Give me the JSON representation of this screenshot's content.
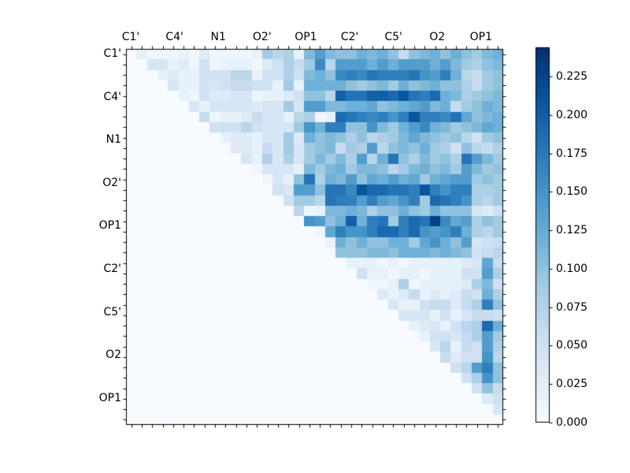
{
  "figure": {
    "background": "#ffffff",
    "kind": "matplotlib-figure"
  },
  "chart_data": {
    "type": "heatmap",
    "title": "",
    "xlabel": "",
    "ylabel": "",
    "n_rows": 36,
    "n_cols": 36,
    "x_tick_labels": [
      "C1'",
      "C4'",
      "N1",
      "O2'",
      "OP1",
      "C2'",
      "C5'",
      "O2",
      "OP1"
    ],
    "y_tick_labels": [
      "C1'",
      "C4'",
      "N1",
      "O2'",
      "OP1",
      "C2'",
      "C5'",
      "O2",
      "OP1"
    ],
    "label_every_n_cells": 4,
    "vmin": 0.0,
    "vmax": 0.244,
    "colormap": "Blues",
    "colormap_stops": [
      {
        "t": 0.0,
        "c": "#f7fbff"
      },
      {
        "t": 0.125,
        "c": "#deebf7"
      },
      {
        "t": 0.25,
        "c": "#c6dbef"
      },
      {
        "t": 0.375,
        "c": "#9ecae1"
      },
      {
        "t": 0.5,
        "c": "#6baed6"
      },
      {
        "t": 0.625,
        "c": "#4292c6"
      },
      {
        "t": 0.75,
        "c": "#2171b5"
      },
      {
        "t": 0.875,
        "c": "#08519c"
      },
      {
        "t": 1.0,
        "c": "#08306b"
      }
    ],
    "colorbar": {
      "position": "right",
      "ticks": [
        {
          "label": "0.000",
          "value": 0.0
        },
        {
          "label": "0.025",
          "value": 0.025
        },
        {
          "label": "0.050",
          "value": 0.05
        },
        {
          "label": "0.075",
          "value": 0.075
        },
        {
          "label": "0.100",
          "value": 0.1
        },
        {
          "label": "0.125",
          "value": 0.125
        },
        {
          "label": "0.150",
          "value": 0.15
        },
        {
          "label": "0.175",
          "value": 0.175
        },
        {
          "label": "0.200",
          "value": 0.2
        },
        {
          "label": "0.225",
          "value": 0.225
        }
      ]
    },
    "matrix": [
      [
        0,
        0.02,
        0.01,
        0.01,
        0.01,
        0.02,
        0.01,
        0.03,
        0.01,
        0.01,
        0.01,
        0.01,
        0.02,
        0.09,
        0.07,
        0.08,
        0.02,
        0.11,
        0.14,
        0.11,
        0.1,
        0.1,
        0.12,
        0.11,
        0.12,
        0.1,
        0.06,
        0.1,
        0.11,
        0.12,
        0.1,
        0.12,
        0.1,
        0.09,
        0.11,
        0.12
      ],
      [
        0,
        0,
        0.04,
        0.04,
        0.02,
        0.03,
        0.01,
        0.05,
        0.01,
        0.02,
        0.02,
        0.02,
        0.01,
        0.03,
        0.05,
        0.08,
        0.06,
        0.09,
        0.16,
        0.07,
        0.14,
        0.14,
        0.14,
        0.12,
        0.14,
        0.12,
        0.14,
        0.14,
        0.14,
        0.12,
        0.14,
        0.11,
        0.09,
        0.08,
        0.1,
        0.11
      ],
      [
        0,
        0,
        0,
        0.02,
        0.03,
        0.02,
        0.02,
        0.05,
        0.05,
        0.05,
        0.07,
        0.07,
        0.02,
        0.05,
        0.05,
        0.08,
        0.05,
        0.11,
        0.12,
        0.1,
        0.16,
        0.17,
        0.16,
        0.18,
        0.17,
        0.17,
        0.17,
        0.18,
        0.15,
        0.14,
        0.17,
        0.12,
        0.07,
        0.06,
        0.09,
        0.1
      ],
      [
        0,
        0,
        0,
        0,
        0.04,
        0.02,
        0.02,
        0.05,
        0.04,
        0.05,
        0.06,
        0.06,
        0.05,
        0.05,
        0.02,
        0.09,
        0.02,
        0.12,
        0.12,
        0.12,
        0.12,
        0.1,
        0.09,
        0.1,
        0.11,
        0.09,
        0.12,
        0.1,
        0.11,
        0.12,
        0.1,
        0.1,
        0.08,
        0.06,
        0.09,
        0.1
      ],
      [
        0,
        0,
        0,
        0,
        0,
        0.02,
        0.01,
        0.05,
        0.03,
        0.03,
        0.04,
        0.04,
        0.01,
        0.02,
        0.02,
        0.03,
        0.05,
        0.1,
        0.1,
        0.07,
        0.2,
        0.18,
        0.18,
        0.2,
        0.2,
        0.19,
        0.21,
        0.18,
        0.17,
        0.19,
        0.12,
        0.11,
        0.08,
        0.09,
        0.1,
        0.11
      ],
      [
        0,
        0,
        0,
        0,
        0,
        0,
        0.04,
        0.02,
        0.04,
        0.04,
        0.04,
        0.04,
        0.03,
        0.04,
        0.04,
        0.09,
        0.04,
        0.14,
        0.14,
        0.11,
        0.11,
        0.12,
        0.12,
        0.13,
        0.1,
        0.11,
        0.12,
        0.13,
        0.14,
        0.11,
        0.12,
        0.06,
        0.09,
        0.1,
        0.12,
        0.11
      ],
      [
        0,
        0,
        0,
        0,
        0,
        0,
        0,
        0.06,
        0.01,
        0.02,
        0.02,
        0.03,
        0.06,
        0.04,
        0.04,
        0.02,
        0.07,
        0.08,
        0.01,
        0.02,
        0.19,
        0.18,
        0.17,
        0.16,
        0.17,
        0.15,
        0.17,
        0.21,
        0.17,
        0.17,
        0.16,
        0.18,
        0.13,
        0.1,
        0.11,
        0.12
      ],
      [
        0,
        0,
        0,
        0,
        0,
        0,
        0,
        0,
        0.05,
        0.05,
        0.05,
        0.07,
        0.05,
        0.04,
        0.04,
        0.04,
        0.09,
        0.15,
        0.12,
        0.17,
        0.17,
        0.1,
        0.1,
        0.15,
        0.11,
        0.09,
        0.12,
        0.14,
        0.16,
        0.12,
        0.11,
        0.09,
        0.1,
        0.11,
        0.13,
        0.12
      ],
      [
        0,
        0,
        0,
        0,
        0,
        0,
        0,
        0,
        0,
        0.02,
        0.03,
        0.03,
        0.02,
        0.04,
        0.04,
        0.09,
        0.03,
        0.12,
        0.1,
        0.11,
        0.1,
        0.08,
        0.1,
        0.07,
        0.08,
        0.09,
        0.11,
        0.13,
        0.11,
        0.1,
        0.09,
        0.1,
        0.07,
        0.05,
        0.09,
        0.1
      ],
      [
        0,
        0,
        0,
        0,
        0,
        0,
        0,
        0,
        0,
        0,
        0.03,
        0.03,
        0.02,
        0.06,
        0.04,
        0.09,
        0.04,
        0.09,
        0.1,
        0.11,
        0.06,
        0.09,
        0.08,
        0.14,
        0.07,
        0.1,
        0.11,
        0.1,
        0.12,
        0.09,
        0.08,
        0.05,
        0.1,
        0.07,
        0.06,
        0.08
      ],
      [
        0,
        0,
        0,
        0,
        0,
        0,
        0,
        0,
        0,
        0,
        0,
        0.04,
        0.02,
        0.08,
        0.04,
        0.08,
        0.04,
        0.09,
        0.11,
        0.09,
        0.11,
        0.08,
        0.14,
        0.07,
        0.12,
        0.18,
        0.1,
        0.08,
        0.11,
        0.09,
        0.1,
        0.08,
        0.18,
        0.14,
        0.11,
        0.09
      ],
      [
        0,
        0,
        0,
        0,
        0,
        0,
        0,
        0,
        0,
        0,
        0,
        0,
        0.01,
        0.04,
        0.04,
        0.04,
        0.02,
        0.11,
        0.09,
        0.11,
        0.12,
        0.09,
        0.11,
        0.11,
        0.1,
        0.07,
        0.09,
        0.11,
        0.12,
        0.1,
        0.11,
        0.09,
        0.14,
        0.11,
        0.09,
        0.1
      ],
      [
        0,
        0,
        0,
        0,
        0,
        0,
        0,
        0,
        0,
        0,
        0,
        0,
        0,
        0.01,
        0.04,
        0.02,
        0.1,
        0.18,
        0.08,
        0.12,
        0.11,
        0.14,
        0.1,
        0.13,
        0.12,
        0.14,
        0.12,
        0.13,
        0.09,
        0.12,
        0.13,
        0.14,
        0.14,
        0.09,
        0.1,
        0.09
      ],
      [
        0,
        0,
        0,
        0,
        0,
        0,
        0,
        0,
        0,
        0,
        0,
        0,
        0,
        0,
        0.05,
        0.04,
        0.14,
        0.14,
        0.1,
        0.18,
        0.18,
        0.16,
        0.21,
        0.19,
        0.19,
        0.18,
        0.18,
        0.17,
        0.21,
        0.17,
        0.15,
        0.17,
        0.17,
        0.08,
        0.08,
        0.09
      ],
      [
        0,
        0,
        0,
        0,
        0,
        0,
        0,
        0,
        0,
        0,
        0,
        0,
        0,
        0,
        0,
        0.05,
        0.09,
        0.09,
        0.07,
        0.18,
        0.17,
        0.17,
        0.14,
        0.17,
        0.14,
        0.13,
        0.15,
        0.17,
        0.09,
        0.19,
        0.18,
        0.17,
        0.15,
        0.08,
        0.07,
        0.09
      ],
      [
        0,
        0,
        0,
        0,
        0,
        0,
        0,
        0,
        0,
        0,
        0,
        0,
        0,
        0,
        0,
        0,
        0.07,
        0.01,
        0.02,
        0.11,
        0.11,
        0.12,
        0.11,
        0.08,
        0.1,
        0.1,
        0.12,
        0.1,
        0.09,
        0.12,
        0.1,
        0.1,
        0.1,
        0.04,
        0.03,
        0.05
      ],
      [
        0,
        0,
        0,
        0,
        0,
        0,
        0,
        0,
        0,
        0,
        0,
        0,
        0,
        0,
        0,
        0,
        0,
        0.15,
        0.14,
        0.1,
        0.12,
        0.2,
        0.12,
        0.17,
        0.18,
        0.09,
        0.17,
        0.19,
        0.18,
        0.23,
        0.16,
        0.13,
        0.14,
        0.08,
        0.1,
        0.09
      ],
      [
        0,
        0,
        0,
        0,
        0,
        0,
        0,
        0,
        0,
        0,
        0,
        0,
        0,
        0,
        0,
        0,
        0,
        0,
        0.01,
        0.13,
        0.17,
        0.15,
        0.15,
        0.17,
        0.19,
        0.19,
        0.17,
        0.19,
        0.15,
        0.14,
        0.15,
        0.17,
        0.12,
        0.08,
        0.07,
        0.09
      ],
      [
        0,
        0,
        0,
        0,
        0,
        0,
        0,
        0,
        0,
        0,
        0,
        0,
        0,
        0,
        0,
        0,
        0,
        0,
        0,
        0.02,
        0.12,
        0.1,
        0.12,
        0.1,
        0.1,
        0.12,
        0.12,
        0.09,
        0.13,
        0.15,
        0.12,
        0.1,
        0.14,
        0.04,
        0.05,
        0.06
      ],
      [
        0,
        0,
        0,
        0,
        0,
        0,
        0,
        0,
        0,
        0,
        0,
        0,
        0,
        0,
        0,
        0,
        0,
        0,
        0,
        0,
        0.1,
        0.1,
        0.1,
        0.11,
        0.11,
        0.1,
        0.12,
        0.12,
        0.12,
        0.11,
        0.12,
        0.11,
        0.1,
        0.05,
        0.06,
        0.07
      ],
      [
        0,
        0,
        0,
        0,
        0,
        0,
        0,
        0,
        0,
        0,
        0,
        0,
        0,
        0,
        0,
        0,
        0,
        0,
        0,
        0,
        0,
        0.02,
        0.02,
        0.02,
        0.01,
        0.02,
        0.01,
        0.02,
        0.02,
        0.02,
        0.02,
        0.02,
        0.03,
        0.04,
        0.13,
        0.06
      ],
      [
        0,
        0,
        0,
        0,
        0,
        0,
        0,
        0,
        0,
        0,
        0,
        0,
        0,
        0,
        0,
        0,
        0,
        0,
        0,
        0,
        0,
        0,
        0.05,
        0.02,
        0.02,
        0.01,
        0.02,
        0.02,
        0.01,
        0.02,
        0.02,
        0.02,
        0.05,
        0.05,
        0.14,
        0.08
      ],
      [
        0,
        0,
        0,
        0,
        0,
        0,
        0,
        0,
        0,
        0,
        0,
        0,
        0,
        0,
        0,
        0,
        0,
        0,
        0,
        0,
        0,
        0,
        0,
        0.01,
        0.01,
        0.02,
        0.08,
        0.01,
        0.02,
        0.02,
        0.02,
        0.02,
        0.03,
        0.08,
        0.11,
        0.05
      ],
      [
        0,
        0,
        0,
        0,
        0,
        0,
        0,
        0,
        0,
        0,
        0,
        0,
        0,
        0,
        0,
        0,
        0,
        0,
        0,
        0,
        0,
        0,
        0,
        0,
        0.03,
        0.02,
        0.03,
        0.06,
        0.02,
        0.03,
        0.02,
        0.03,
        0.06,
        0.05,
        0.12,
        0.08
      ],
      [
        0,
        0,
        0,
        0,
        0,
        0,
        0,
        0,
        0,
        0,
        0,
        0,
        0,
        0,
        0,
        0,
        0,
        0,
        0,
        0,
        0,
        0,
        0,
        0,
        0,
        0.04,
        0.02,
        0.02,
        0.05,
        0.06,
        0.06,
        0.03,
        0.06,
        0.08,
        0.17,
        0.1
      ],
      [
        0,
        0,
        0,
        0,
        0,
        0,
        0,
        0,
        0,
        0,
        0,
        0,
        0,
        0,
        0,
        0,
        0,
        0,
        0,
        0,
        0,
        0,
        0,
        0,
        0,
        0,
        0.04,
        0.04,
        0.04,
        0.02,
        0.05,
        0.02,
        0.04,
        0.06,
        0.06,
        0.05
      ],
      [
        0,
        0,
        0,
        0,
        0,
        0,
        0,
        0,
        0,
        0,
        0,
        0,
        0,
        0,
        0,
        0,
        0,
        0,
        0,
        0,
        0,
        0,
        0,
        0,
        0,
        0,
        0,
        0.02,
        0.03,
        0.04,
        0.02,
        0.05,
        0.07,
        0.08,
        0.19,
        0.12
      ],
      [
        0,
        0,
        0,
        0,
        0,
        0,
        0,
        0,
        0,
        0,
        0,
        0,
        0,
        0,
        0,
        0,
        0,
        0,
        0,
        0,
        0,
        0,
        0,
        0,
        0,
        0,
        0,
        0,
        0.02,
        0.05,
        0.05,
        0.04,
        0.06,
        0.08,
        0.14,
        0.09
      ],
      [
        0,
        0,
        0,
        0,
        0,
        0,
        0,
        0,
        0,
        0,
        0,
        0,
        0,
        0,
        0,
        0,
        0,
        0,
        0,
        0,
        0,
        0,
        0,
        0,
        0,
        0,
        0,
        0,
        0,
        0.04,
        0.07,
        0.02,
        0.06,
        0.05,
        0.14,
        0.08
      ],
      [
        0,
        0,
        0,
        0,
        0,
        0,
        0,
        0,
        0,
        0,
        0,
        0,
        0,
        0,
        0,
        0,
        0,
        0,
        0,
        0,
        0,
        0,
        0,
        0,
        0,
        0,
        0,
        0,
        0,
        0,
        0.06,
        0.03,
        0.05,
        0.05,
        0.15,
        0.07
      ],
      [
        0,
        0,
        0,
        0,
        0,
        0,
        0,
        0,
        0,
        0,
        0,
        0,
        0,
        0,
        0,
        0,
        0,
        0,
        0,
        0,
        0,
        0,
        0,
        0,
        0,
        0,
        0,
        0,
        0,
        0,
        0,
        0.05,
        0.07,
        0.14,
        0.17,
        0.1
      ],
      [
        0,
        0,
        0,
        0,
        0,
        0,
        0,
        0,
        0,
        0,
        0,
        0,
        0,
        0,
        0,
        0,
        0,
        0,
        0,
        0,
        0,
        0,
        0,
        0,
        0,
        0,
        0,
        0,
        0,
        0,
        0,
        0,
        0.05,
        0.08,
        0.15,
        0.1
      ],
      [
        0,
        0,
        0,
        0,
        0,
        0,
        0,
        0,
        0,
        0,
        0,
        0,
        0,
        0,
        0,
        0,
        0,
        0,
        0,
        0,
        0,
        0,
        0,
        0,
        0,
        0,
        0,
        0,
        0,
        0,
        0,
        0,
        0,
        0.05,
        0.1,
        0.06
      ],
      [
        0,
        0,
        0,
        0,
        0,
        0,
        0,
        0,
        0,
        0,
        0,
        0,
        0,
        0,
        0,
        0,
        0,
        0,
        0,
        0,
        0,
        0,
        0,
        0,
        0,
        0,
        0,
        0,
        0,
        0,
        0,
        0,
        0,
        0,
        0.03,
        0.05
      ],
      [
        0,
        0,
        0,
        0,
        0,
        0,
        0,
        0,
        0,
        0,
        0,
        0,
        0,
        0,
        0,
        0,
        0,
        0,
        0,
        0,
        0,
        0,
        0,
        0,
        0,
        0,
        0,
        0,
        0,
        0,
        0,
        0,
        0,
        0,
        0,
        0.04
      ],
      [
        0,
        0,
        0,
        0,
        0,
        0,
        0,
        0,
        0,
        0,
        0,
        0,
        0,
        0,
        0,
        0,
        0,
        0,
        0,
        0,
        0,
        0,
        0,
        0,
        0,
        0,
        0,
        0,
        0,
        0,
        0,
        0,
        0,
        0,
        0,
        0
      ]
    ]
  }
}
